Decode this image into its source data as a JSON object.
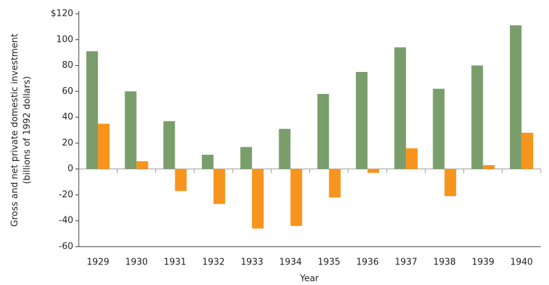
{
  "chart_data": {
    "type": "bar",
    "ylabel": [
      "Gross and net private domestic investment",
      "(billions of 1992 dollars)"
    ],
    "xlabel": "Year",
    "categories": [
      "1929",
      "1930",
      "1931",
      "1932",
      "1933",
      "1934",
      "1935",
      "1936",
      "1937",
      "1938",
      "1939",
      "1940"
    ],
    "series": [
      {
        "color": "#7a9e6b",
        "values": [
          91,
          60,
          37,
          11,
          17,
          31,
          58,
          75,
          94,
          62,
          80,
          111
        ]
      },
      {
        "color": "#f7941d",
        "values": [
          35,
          6,
          -17,
          -27,
          -46,
          -44,
          -22,
          -3,
          16,
          -21,
          3,
          28
        ]
      }
    ],
    "ylim": [
      -60,
      120
    ],
    "yticks": [
      -60,
      -40,
      -20,
      0,
      20,
      40,
      60,
      80,
      100,
      {
        "value": 120,
        "label": "$120"
      }
    ]
  }
}
